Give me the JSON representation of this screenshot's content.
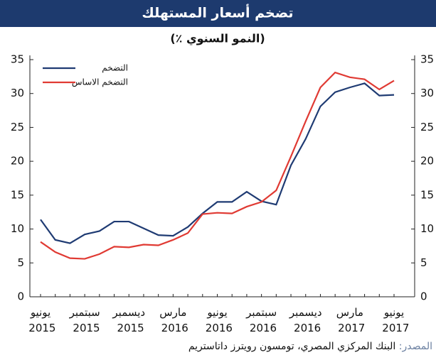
{
  "chart_data": {
    "type": "line",
    "title": "تضخم أسعار المستهلك",
    "subtitle": "(٪ النمو السنوي)",
    "categories": [
      "يونيو 2015",
      null,
      null,
      "سبتمبر 2015",
      null,
      null,
      "ديسمبر 2015",
      null,
      null,
      "مارس 2016",
      null,
      null,
      "يونيو 2016",
      null,
      null,
      "سبتمبر 2016",
      null,
      null,
      "ديسمبر 2016",
      null,
      null,
      "مارس 2017",
      null,
      null,
      "يونيو 2017"
    ],
    "series": [
      {
        "name": "التضخم",
        "color": "#1f3b73",
        "values": [
          11.4,
          8.4,
          7.9,
          9.2,
          9.7,
          11.1,
          11.1,
          10.1,
          9.1,
          9.0,
          10.3,
          12.3,
          14.0,
          14.0,
          15.5,
          14.1,
          13.6,
          19.4,
          23.3,
          28.1,
          30.2,
          30.9,
          31.5,
          29.7,
          29.8
        ]
      },
      {
        "name": "التضخم الاساس",
        "color": "#e03a33",
        "values": [
          8.1,
          6.6,
          5.7,
          5.6,
          6.3,
          7.4,
          7.3,
          7.7,
          7.6,
          8.4,
          9.4,
          12.2,
          12.4,
          12.3,
          13.3,
          14.0,
          15.7,
          20.7,
          25.9,
          30.9,
          33.1,
          32.4,
          32.1,
          30.6,
          31.9
        ]
      }
    ],
    "ylim": [
      0,
      35
    ],
    "yticks": [
      0,
      5,
      10,
      15,
      20,
      25,
      30,
      35
    ],
    "grid": false,
    "legend": "upper-left",
    "source_label": "المصدر:",
    "source": "البنك المركزي المصري، تومسون رويترز داتاستريم"
  }
}
